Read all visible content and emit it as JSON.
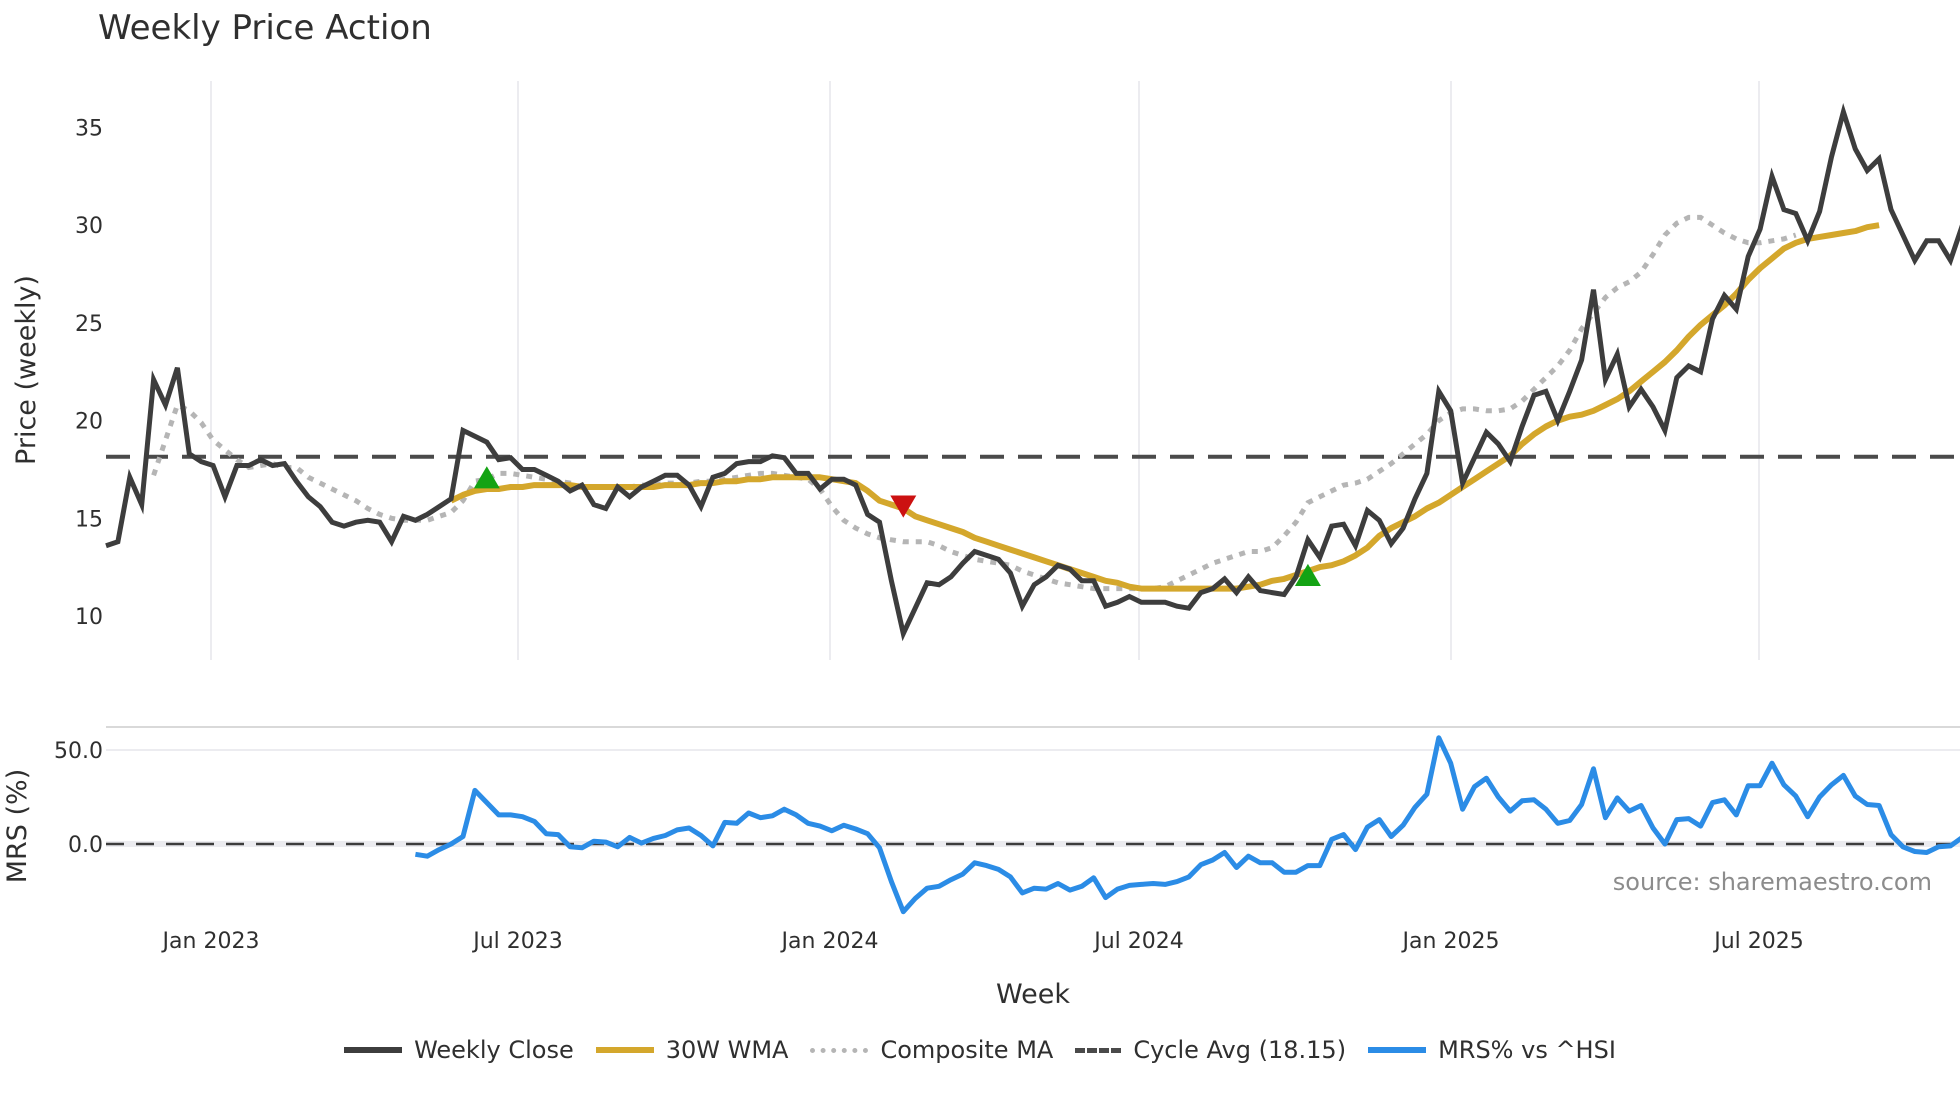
{
  "title": "Weekly Price Action",
  "source": "source: sharemaestro.com",
  "colors": {
    "close": "#3d3d3d",
    "wma": "#d4a72c",
    "composite": "#b5b5b5",
    "cycle": "#4a4a4a",
    "mrs": "#2b8ce6",
    "buy": "#14a314",
    "sell": "#cc1111",
    "grid": "#ececf0"
  },
  "legend": [
    {
      "label": "Weekly Close",
      "key": "close",
      "style": "solid"
    },
    {
      "label": "30W WMA",
      "key": "wma",
      "style": "solid"
    },
    {
      "label": "Composite MA",
      "key": "composite",
      "style": "dotted"
    },
    {
      "label": "Cycle Avg (18.15)",
      "key": "cycle",
      "style": "dashed"
    },
    {
      "label": "MRS% vs ^HSI",
      "key": "mrs",
      "style": "solid"
    }
  ],
  "chart_data": [
    {
      "type": "line",
      "title": "Weekly Price Action",
      "xlabel": "Week",
      "ylabel": "Price (weekly)",
      "ylim": [
        7.5,
        37.5
      ],
      "yticks": [
        10,
        15,
        20,
        25,
        30,
        35
      ],
      "xticks": [
        "Jan 2023",
        "Jul 2023",
        "Jan 2024",
        "Jul 2024",
        "Jan 2025",
        "Jul 2025"
      ],
      "x_range": [
        "~Oct 2022",
        "~Nov 2025"
      ],
      "grid": "vertical",
      "cycle_avg": 18.15,
      "series": [
        {
          "name": "Weekly Close",
          "values": [
            13.6,
            13.8,
            17.1,
            15.7,
            22.1,
            20.8,
            22.7,
            18.3,
            17.9,
            17.7,
            16.1,
            17.7,
            17.7,
            18.0,
            17.7,
            17.8,
            16.9,
            16.1,
            15.6,
            14.8,
            14.6,
            14.8,
            14.9,
            14.8,
            13.8,
            15.1,
            14.9,
            15.2,
            15.6,
            16.0,
            19.5,
            19.2,
            18.9,
            18.0,
            18.1,
            17.5,
            17.5,
            17.2,
            16.9,
            16.4,
            16.7,
            15.7,
            15.5,
            16.6,
            16.1,
            16.6,
            16.9,
            17.2,
            17.2,
            16.7,
            15.6,
            17.1,
            17.3,
            17.8,
            17.9,
            17.9,
            18.2,
            18.1,
            17.3,
            17.3,
            16.5,
            17.0,
            17.0,
            16.7,
            15.2,
            14.8,
            11.8,
            9.1,
            10.4,
            11.7,
            11.6,
            12.0,
            12.7,
            13.3,
            13.1,
            12.9,
            12.2,
            10.5,
            11.6,
            12.0,
            12.6,
            12.4,
            11.8,
            11.8,
            10.5,
            10.7,
            11.0,
            10.7,
            10.7,
            10.7,
            10.5,
            10.4,
            11.2,
            11.4,
            11.9,
            11.2,
            12.0,
            11.3,
            11.2,
            11.1,
            12.0,
            13.9,
            13.0,
            14.6,
            14.7,
            13.6,
            15.4,
            14.9,
            13.7,
            14.5,
            16.0,
            17.3,
            21.5,
            20.5,
            16.8,
            18.1,
            19.4,
            18.8,
            17.9,
            19.7,
            21.3,
            21.5,
            20.0,
            21.5,
            23.1,
            26.7,
            22.1,
            23.4,
            20.7,
            21.6,
            20.7,
            19.5,
            22.2,
            22.8,
            22.5,
            25.2,
            26.4,
            25.7,
            28.4,
            29.8,
            32.5,
            30.8,
            30.6,
            29.2,
            30.7,
            33.5,
            35.8,
            33.9,
            32.8,
            33.4,
            30.8,
            29.5,
            28.2,
            29.2,
            29.2,
            28.2,
            30.0,
            30.0
          ]
        },
        {
          "name": "30W WMA",
          "start_index": 29,
          "values": [
            15.9,
            16.2,
            16.4,
            16.5,
            16.5,
            16.6,
            16.6,
            16.7,
            16.7,
            16.7,
            16.7,
            16.6,
            16.6,
            16.6,
            16.6,
            16.6,
            16.6,
            16.6,
            16.7,
            16.7,
            16.7,
            16.8,
            16.8,
            16.9,
            16.9,
            17.0,
            17.0,
            17.1,
            17.1,
            17.1,
            17.1,
            17.1,
            17.0,
            16.9,
            16.8,
            16.4,
            15.9,
            15.7,
            15.5,
            15.1,
            14.9,
            14.7,
            14.5,
            14.3,
            14.0,
            13.8,
            13.6,
            13.4,
            13.2,
            13.0,
            12.8,
            12.6,
            12.4,
            12.2,
            12.0,
            11.8,
            11.7,
            11.5,
            11.4,
            11.4,
            11.4,
            11.4,
            11.4,
            11.4,
            11.4,
            11.4,
            11.4,
            11.5,
            11.6,
            11.8,
            11.9,
            12.1,
            12.3,
            12.5,
            12.6,
            12.8,
            13.1,
            13.5,
            14.1,
            14.5,
            14.8,
            15.1,
            15.5,
            15.8,
            16.2,
            16.6,
            17.0,
            17.4,
            17.8,
            18.2,
            18.8,
            19.3,
            19.7,
            20.0,
            20.2,
            20.3,
            20.5,
            20.8,
            21.1,
            21.5,
            22.0,
            22.5,
            23.0,
            23.6,
            24.3,
            24.9,
            25.4,
            25.9,
            26.5,
            27.2,
            27.8,
            28.3,
            28.8,
            29.1,
            29.3,
            29.4,
            29.5,
            29.6,
            29.7,
            29.9,
            30.0
          ]
        },
        {
          "name": "Composite MA",
          "start_index": 4,
          "values": [
            17.2,
            19.0,
            20.8,
            20.5,
            19.9,
            19.0,
            18.5,
            18.0,
            17.6,
            17.7,
            17.8,
            17.6,
            17.6,
            17.1,
            16.8,
            16.5,
            16.2,
            15.9,
            15.5,
            15.2,
            15.0,
            14.9,
            14.9,
            14.9,
            15.1,
            15.3,
            15.9,
            16.9,
            17.0,
            17.3,
            17.3,
            17.2,
            17.1,
            17.0,
            16.9,
            16.8,
            16.6,
            16.6,
            16.6,
            16.6,
            16.6,
            16.7,
            16.7,
            16.8,
            16.8,
            16.8,
            16.9,
            16.9,
            17.0,
            17.1,
            17.2,
            17.3,
            17.3,
            17.2,
            17.1,
            17.0,
            16.5,
            15.6,
            14.9,
            14.5,
            14.2,
            14.0,
            13.9,
            13.8,
            13.8,
            13.8,
            13.6,
            13.3,
            13.1,
            12.9,
            12.8,
            12.7,
            12.6,
            12.3,
            12.1,
            11.9,
            11.7,
            11.6,
            11.5,
            11.4,
            11.4,
            11.4,
            11.4,
            11.4,
            11.4,
            11.5,
            11.8,
            12.1,
            12.4,
            12.7,
            12.9,
            13.1,
            13.3,
            13.3,
            13.5,
            14.1,
            14.8,
            15.8,
            16.1,
            16.4,
            16.7,
            16.8,
            17.0,
            17.4,
            17.8,
            18.3,
            18.8,
            19.3,
            20.0,
            20.4,
            20.6,
            20.6,
            20.5,
            20.5,
            20.6,
            21.0,
            21.6,
            22.2,
            22.8,
            23.6,
            24.7,
            25.5,
            26.3,
            26.8,
            27.1,
            27.6,
            28.5,
            29.5,
            30.1,
            30.4,
            30.4,
            30.0,
            29.6,
            29.3,
            29.1,
            29.1,
            29.2,
            29.3,
            29.5
          ]
        },
        {
          "name": "Cycle Avg (18.15)",
          "value": 18.15
        }
      ],
      "markers": [
        {
          "type": "buy",
          "shape": "triangle-up",
          "index": 32,
          "value": 17.0
        },
        {
          "type": "sell",
          "shape": "triangle-down",
          "index": 67,
          "value": 15.7
        },
        {
          "type": "buy",
          "shape": "triangle-up",
          "index": 101,
          "value": 12.0
        }
      ]
    },
    {
      "type": "line",
      "title": "",
      "xlabel": "Week",
      "ylabel": "MRS (%)",
      "ylim": [
        -37,
        64
      ],
      "yticks": [
        0.0,
        50.0
      ],
      "ytick_labels": [
        "0.0",
        "50.0"
      ],
      "zero_line": "dashed",
      "series": [
        {
          "name": "MRS% vs ^HSI",
          "start_index": 26,
          "values": [
            -5.5,
            -6.5,
            -3.0,
            0.0,
            4.0,
            28.5,
            22.0,
            15.5,
            15.5,
            14.5,
            12.0,
            5.5,
            5.0,
            -1.5,
            -2.0,
            1.5,
            1.0,
            -1.5,
            3.5,
            0.5,
            3.0,
            4.5,
            7.5,
            8.5,
            4.5,
            -1.0,
            11.5,
            11.0,
            16.5,
            14.0,
            15.0,
            18.5,
            15.5,
            11.0,
            9.5,
            7.0,
            10.0,
            8.0,
            5.5,
            -2.0,
            -20.0,
            -36.0,
            -29.0,
            -23.5,
            -22.5,
            -19.0,
            -16.0,
            -10.0,
            -11.5,
            -13.5,
            -17.5,
            -26.0,
            -23.5,
            -24.0,
            -21.0,
            -24.5,
            -22.5,
            -18.0,
            -28.5,
            -24.0,
            -22.0,
            -21.5,
            -21.0,
            -21.5,
            -20.0,
            -17.5,
            -11.0,
            -8.5,
            -4.5,
            -12.5,
            -6.5,
            -10.0,
            -10.0,
            -15.0,
            -15.0,
            -11.5,
            -11.5,
            2.5,
            5.0,
            -3.0,
            9.0,
            13.0,
            4.0,
            10.0,
            19.5,
            26.5,
            56.5,
            43.0,
            18.5,
            30.5,
            35.0,
            25.0,
            17.5,
            23.0,
            23.5,
            18.5,
            11.0,
            12.5,
            21.0,
            40.0,
            14.0,
            24.5,
            17.5,
            20.5,
            8.5,
            0.0,
            13.0,
            13.5,
            9.5,
            22.0,
            23.5,
            15.5,
            31.0,
            31.0,
            43.0,
            31.5,
            25.5,
            14.5,
            25.0,
            31.5,
            36.5,
            25.5,
            21.0,
            20.5,
            5.0,
            -1.5,
            -4.0,
            -4.5,
            -1.5,
            -1.0,
            3.5,
            2.0
          ]
        }
      ]
    }
  ]
}
